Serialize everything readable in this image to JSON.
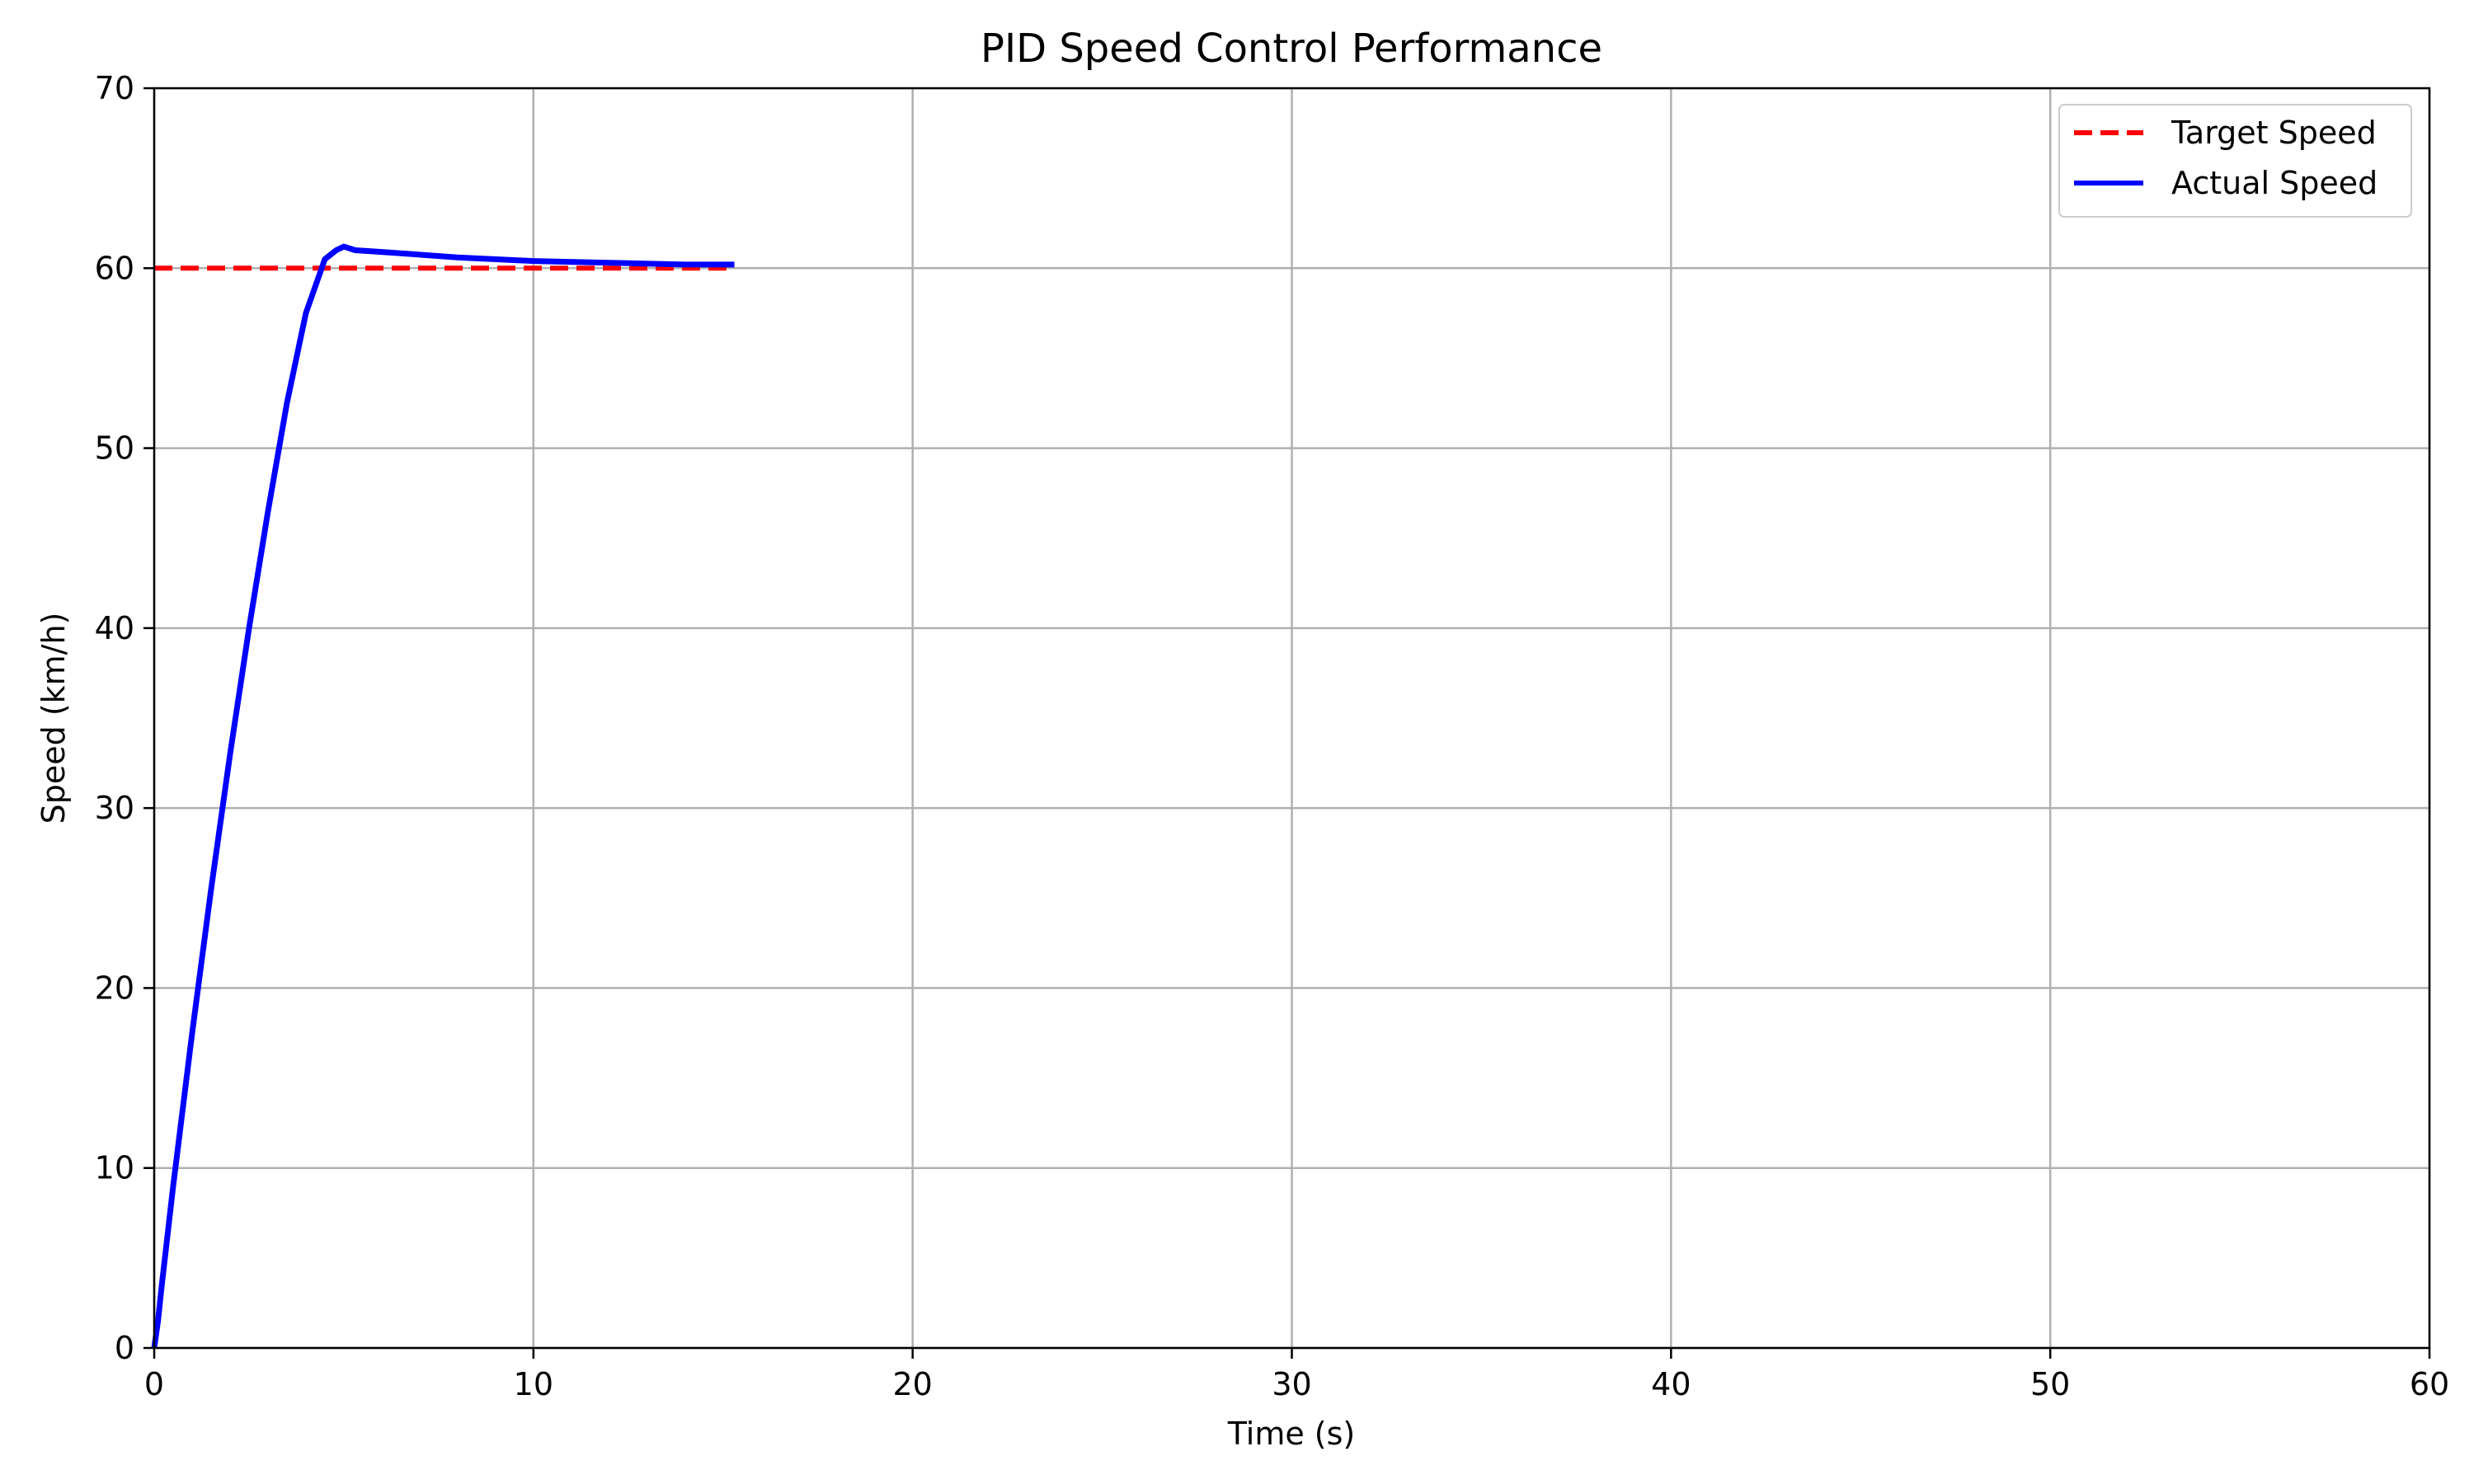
{
  "chart_data": {
    "type": "line",
    "title": "PID Speed Control Performance",
    "xlabel": "Time (s)",
    "ylabel": "Speed (km/h)",
    "xlim": [
      0,
      60
    ],
    "ylim": [
      0,
      70
    ],
    "xticks": [
      0,
      10,
      20,
      30,
      40,
      50,
      60
    ],
    "yticks": [
      0,
      10,
      20,
      30,
      40,
      50,
      60,
      70
    ],
    "grid": true,
    "legend_position": "top-right",
    "series": [
      {
        "name": "Target Speed",
        "color": "#ff0000",
        "style": "dashed",
        "x": [
          0,
          15.3
        ],
        "y": [
          60,
          60
        ]
      },
      {
        "name": "Actual Speed",
        "color": "#0000ff",
        "style": "solid",
        "x": [
          0.0,
          0.1,
          0.2,
          0.5,
          1.0,
          1.5,
          2.0,
          2.5,
          3.0,
          3.5,
          4.0,
          4.5,
          4.8,
          5.0,
          5.3,
          6.0,
          8.0,
          10.0,
          12.0,
          14.0,
          15.3
        ],
        "y": [
          0.0,
          1.5,
          3.5,
          9.0,
          17.5,
          25.5,
          33.0,
          40.0,
          46.5,
          52.5,
          57.5,
          60.5,
          61.0,
          61.2,
          61.0,
          60.9,
          60.6,
          60.4,
          60.3,
          60.2,
          60.2
        ]
      }
    ]
  }
}
